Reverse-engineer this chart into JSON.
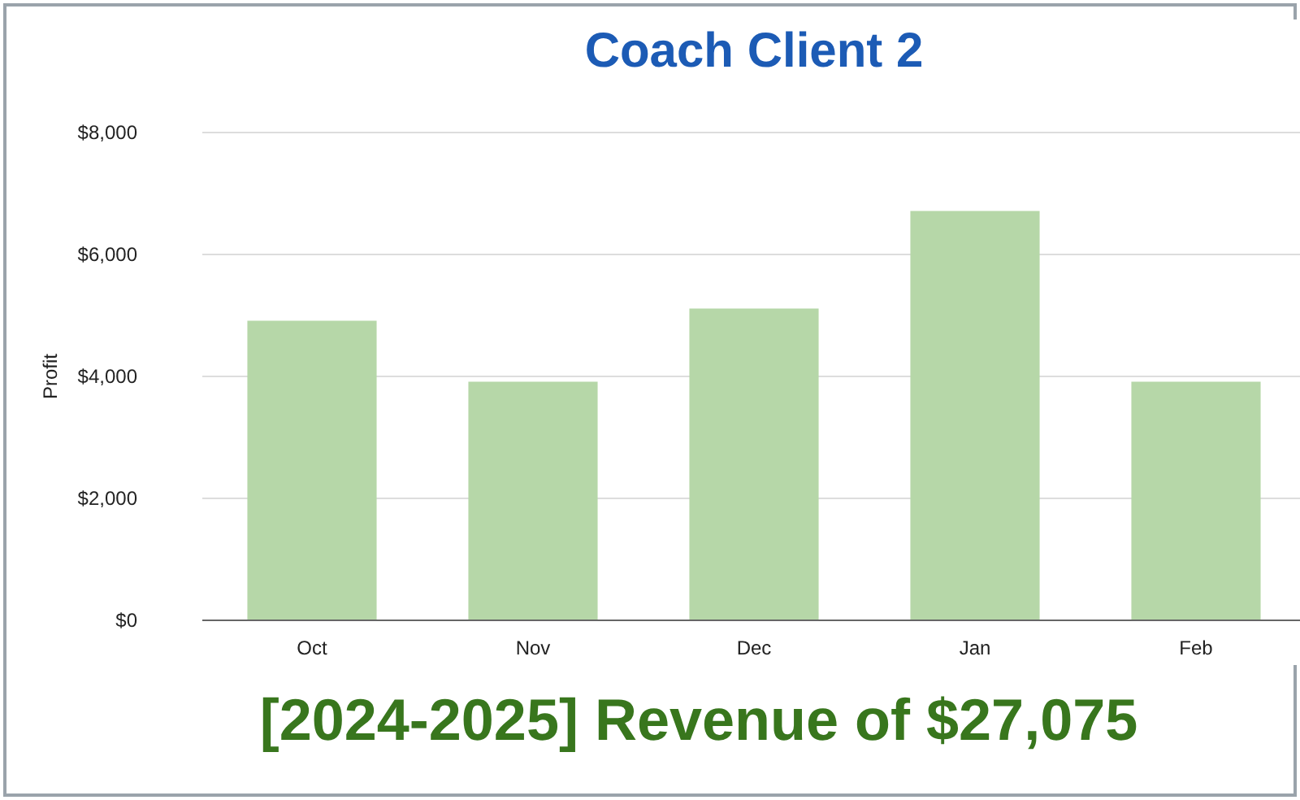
{
  "chart_data": {
    "type": "bar",
    "title": "Coach Client 2",
    "ylabel": "Profit",
    "categories": [
      "Oct",
      "Nov",
      "Dec",
      "Jan",
      "Feb"
    ],
    "values": [
      4900,
      3900,
      5100,
      6700,
      3900
    ],
    "color": "#b6d7a8",
    "ylim": [
      0,
      8000
    ],
    "yticks": [
      {
        "value": 0,
        "label": "$0"
      },
      {
        "value": 2000,
        "label": "$2,000"
      },
      {
        "value": 4000,
        "label": "$4,000"
      },
      {
        "value": 6000,
        "label": "$6,000"
      },
      {
        "value": 8000,
        "label": "$8,000"
      }
    ],
    "grid": "y",
    "annotations": [
      "[2024-2025] Revenue of $27,075"
    ]
  }
}
